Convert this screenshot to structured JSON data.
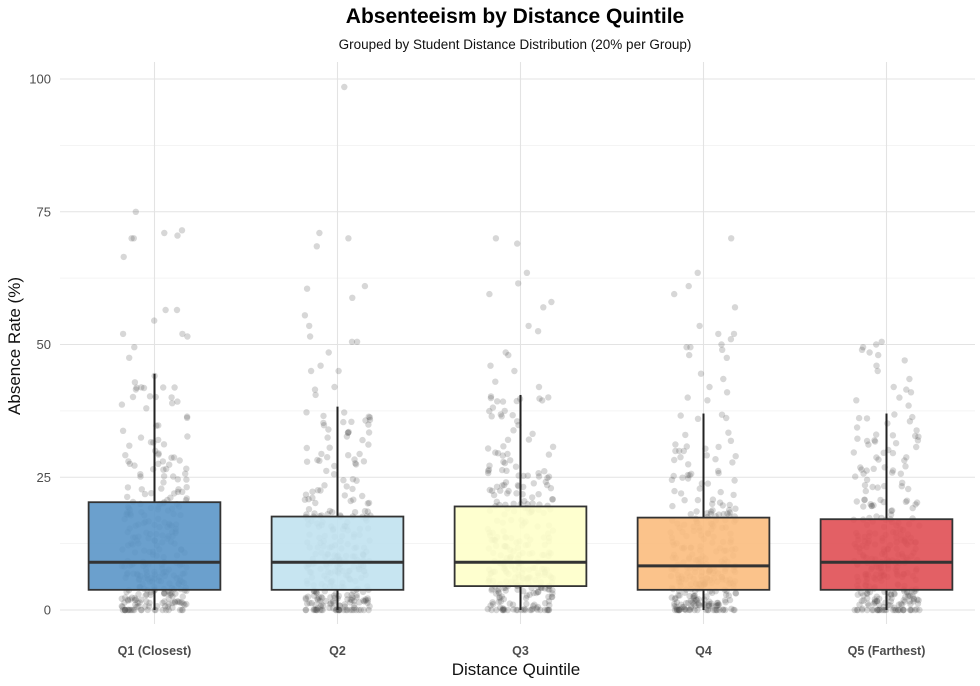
{
  "chart_data": {
    "type": "box",
    "title": "Absenteeism by Distance Quintile",
    "subtitle": "Grouped by Student Distance Distribution (20% per Group)",
    "xlabel": "Distance Quintile",
    "ylabel": "Absence Rate (%)",
    "ylim": [
      -2,
      103
    ],
    "yticks": [
      0,
      25,
      50,
      75,
      100
    ],
    "grid": true,
    "legend": "none",
    "categories": [
      "Q1 (Closest)",
      "Q2",
      "Q3",
      "Q4",
      "Q5 (Farthest)"
    ],
    "colors": [
      "#5b96c8",
      "#c1e2ef",
      "#feffca",
      "#fbbd7e",
      "#e04f54"
    ],
    "series": [
      {
        "q1": 3.8,
        "median": 9.0,
        "q3": 20.3,
        "whisker_low": 0,
        "whisker_high": 44.5,
        "outliers": [
          75,
          71.5,
          71,
          70.5,
          70,
          70,
          66.5,
          56.5,
          56.5,
          54.5,
          52,
          52,
          51.5,
          49.5,
          47.5
        ]
      },
      {
        "q1": 3.8,
        "median": 9.0,
        "q3": 17.6,
        "whisker_low": 0,
        "whisker_high": 38.3,
        "outliers": [
          98.5,
          71,
          70,
          68.5,
          61,
          60.5,
          58.8,
          55.5,
          53.5,
          51.5,
          50.5,
          50.5,
          48.5,
          46,
          45,
          45,
          42,
          41.5,
          40.5
        ]
      },
      {
        "q1": 4.5,
        "median": 9.0,
        "q3": 19.5,
        "whisker_low": 0,
        "whisker_high": 40.5,
        "outliers": [
          70,
          69,
          63.5,
          61.5,
          59.5,
          58,
          57,
          53.5,
          52.5,
          48.5,
          48,
          46,
          45,
          43,
          42
        ]
      },
      {
        "q1": 3.8,
        "median": 8.3,
        "q3": 17.4,
        "whisker_low": 0,
        "whisker_high": 37.0,
        "outliers": [
          70,
          63.5,
          61,
          59.5,
          57,
          53.5,
          52,
          52,
          51,
          50,
          49.5,
          49.5,
          49,
          48,
          47.5,
          44.5,
          43.5,
          42,
          41,
          40,
          39.5
        ]
      },
      {
        "q1": 3.8,
        "median": 9.0,
        "q3": 17.1,
        "whisker_low": 0,
        "whisker_high": 37.0,
        "outliers": [
          50.5,
          50,
          49.5,
          49,
          48.5,
          48,
          47,
          46,
          45,
          43.5,
          42,
          41.5,
          41,
          40,
          39.5,
          38.5
        ]
      }
    ]
  }
}
